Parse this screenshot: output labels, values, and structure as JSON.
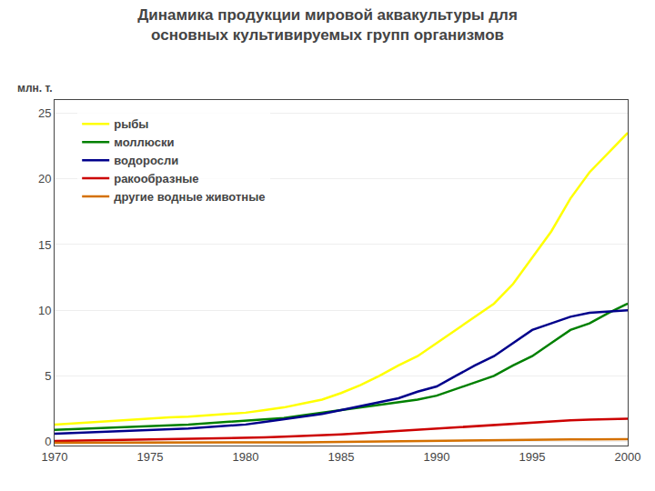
{
  "chart_data": {
    "type": "line",
    "title": "Динамика продукции мировой аквакультуры для\nосновных культивируемых групп организмов",
    "ylabel": "млн. т.",
    "x": [
      1970,
      1971,
      1972,
      1973,
      1974,
      1975,
      1976,
      1977,
      1978,
      1979,
      1980,
      1981,
      1982,
      1983,
      1984,
      1985,
      1986,
      1987,
      1988,
      1989,
      1990,
      1991,
      1992,
      1993,
      1994,
      1995,
      1996,
      1997,
      1998,
      1999,
      2000
    ],
    "series": [
      {
        "name": "рыбы",
        "color": "#ffff00",
        "values": [
          1.3,
          1.4,
          1.5,
          1.6,
          1.65,
          1.75,
          1.85,
          1.9,
          2.0,
          2.1,
          2.2,
          2.4,
          2.6,
          2.9,
          3.2,
          3.7,
          4.3,
          5.0,
          5.8,
          6.5,
          7.5,
          8.5,
          9.5,
          10.5,
          12.0,
          14.0,
          16.0,
          18.5,
          20.5,
          22.0,
          23.5
        ]
      },
      {
        "name": "моллюски",
        "color": "#008000",
        "values": [
          0.9,
          0.95,
          1.0,
          1.05,
          1.1,
          1.15,
          1.2,
          1.3,
          1.4,
          1.5,
          1.6,
          1.7,
          1.8,
          2.0,
          2.2,
          2.4,
          2.6,
          2.8,
          3.0,
          3.2,
          3.5,
          4.0,
          4.5,
          5.0,
          5.8,
          6.5,
          7.5,
          8.5,
          9.0,
          9.8,
          10.5
        ]
      },
      {
        "name": "водоросли",
        "color": "#00008b",
        "values": [
          0.6,
          0.65,
          0.7,
          0.75,
          0.8,
          0.85,
          0.9,
          1.0,
          1.1,
          1.2,
          1.3,
          1.5,
          1.7,
          1.9,
          2.1,
          2.4,
          2.7,
          3.0,
          3.3,
          3.8,
          4.2,
          5.0,
          5.8,
          6.5,
          7.5,
          8.5,
          9.0,
          9.5,
          9.8,
          9.9,
          10.0
        ]
      },
      {
        "name": "ракообразные",
        "color": "#cc0000",
        "values": [
          0.05,
          0.07,
          0.09,
          0.11,
          0.13,
          0.15,
          0.18,
          0.2,
          0.22,
          0.25,
          0.28,
          0.32,
          0.37,
          0.42,
          0.48,
          0.55,
          0.63,
          0.72,
          0.82,
          0.92,
          1.02,
          1.1,
          1.18,
          1.25,
          1.35,
          1.45,
          1.55,
          1.62,
          1.67,
          1.72,
          1.75
        ]
      },
      {
        "name": "другие водные животные",
        "color": "#d47000",
        "values": [
          -0.1,
          -0.1,
          -0.1,
          -0.1,
          -0.1,
          -0.1,
          -0.1,
          -0.1,
          -0.1,
          -0.1,
          -0.08,
          -0.07,
          -0.06,
          -0.05,
          -0.04,
          -0.02,
          0.0,
          0.02,
          0.04,
          0.06,
          0.08,
          0.1,
          0.12,
          0.13,
          0.14,
          0.15,
          0.16,
          0.17,
          0.17,
          0.17,
          0.18
        ]
      }
    ],
    "xlim": [
      1970,
      2000
    ],
    "xticks": [
      1970,
      1975,
      1980,
      1985,
      1990,
      1995,
      2000
    ],
    "ylim": [
      -0.3,
      26
    ],
    "yticks": [
      0,
      5,
      10,
      15,
      20,
      25
    ],
    "grid": true,
    "legend": "upper left"
  }
}
